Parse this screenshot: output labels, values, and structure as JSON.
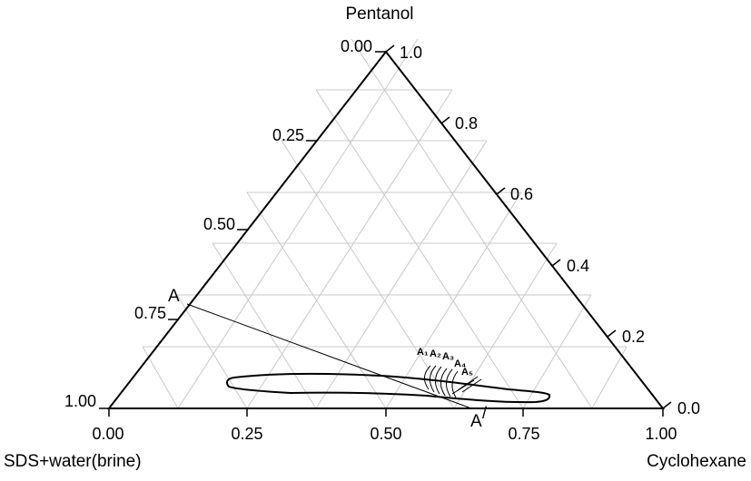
{
  "diagram": {
    "type": "ternary",
    "vertices": {
      "top": "Pentanol",
      "bottom_left": "SDS+water(brine)",
      "bottom_right": "Cyclohexane"
    },
    "left_axis_ticks": [
      "0.00",
      "0.25",
      "0.50",
      "0.75",
      "1.00"
    ],
    "right_axis_ticks": [
      "1.0",
      "0.8",
      "0.6",
      "0.4",
      "0.2",
      "0.0"
    ],
    "bottom_axis_ticks": [
      "0.00",
      "0.25",
      "0.50",
      "0.75",
      "1.00"
    ],
    "points": {
      "A": "A",
      "A_prime": "A",
      "A_prime_mark": "/",
      "A1": "A₁",
      "A2": "A₂",
      "A3": "A₃",
      "A4": "A₄",
      "A5": "A₅"
    },
    "dilution_line": {
      "from_left_fraction": 0.75,
      "to_bottom_fraction": 0.65
    },
    "region_style": "closed single-phase boundary",
    "colors": {
      "frame": "#000000",
      "grid": "#c8c8c8",
      "background": "#ffffff"
    }
  }
}
